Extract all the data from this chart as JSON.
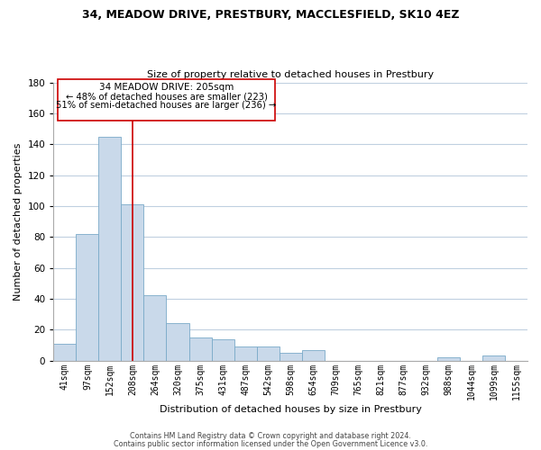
{
  "title": "34, MEADOW DRIVE, PRESTBURY, MACCLESFIELD, SK10 4EZ",
  "subtitle": "Size of property relative to detached houses in Prestbury",
  "xlabel": "Distribution of detached houses by size in Prestbury",
  "ylabel": "Number of detached properties",
  "bar_color": "#c9d9ea",
  "bar_edge_color": "#7aaac8",
  "categories": [
    "41sqm",
    "97sqm",
    "152sqm",
    "208sqm",
    "264sqm",
    "320sqm",
    "375sqm",
    "431sqm",
    "487sqm",
    "542sqm",
    "598sqm",
    "654sqm",
    "709sqm",
    "765sqm",
    "821sqm",
    "877sqm",
    "932sqm",
    "988sqm",
    "1044sqm",
    "1099sqm",
    "1155sqm"
  ],
  "values": [
    11,
    82,
    145,
    101,
    42,
    24,
    15,
    14,
    9,
    9,
    5,
    7,
    0,
    0,
    0,
    0,
    0,
    2,
    0,
    3,
    0
  ],
  "ylim": [
    0,
    180
  ],
  "yticks": [
    0,
    20,
    40,
    60,
    80,
    100,
    120,
    140,
    160,
    180
  ],
  "vline_x": 3,
  "vline_color": "#cc0000",
  "annotation_title": "34 MEADOW DRIVE: 205sqm",
  "annotation_line1": "← 48% of detached houses are smaller (223)",
  "annotation_line2": "51% of semi-detached houses are larger (236) →",
  "annotation_box_color": "#ffffff",
  "annotation_box_edge": "#cc0000",
  "footer_line1": "Contains HM Land Registry data © Crown copyright and database right 2024.",
  "footer_line2": "Contains public sector information licensed under the Open Government Licence v3.0.",
  "background_color": "#ffffff",
  "grid_color": "#c0d0e0"
}
